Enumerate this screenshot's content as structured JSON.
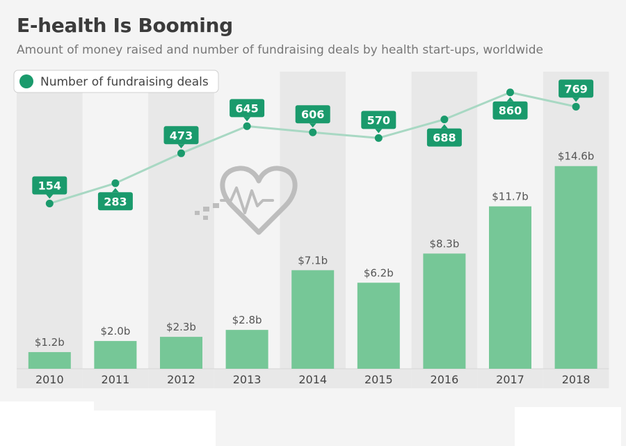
{
  "header": {
    "title": "E-health Is Booming",
    "subtitle": "Amount of money raised and number of fundraising deals by health start-ups, worldwide"
  },
  "colors": {
    "bar": "#76c797",
    "line": "#a8d8c3",
    "marker": "#1a9a6c",
    "label_bg": "#1a9a6c",
    "band": "#e8e8e8",
    "text": "#555555",
    "icon": "#bdbdbd"
  },
  "chart_data": {
    "type": "bar",
    "categories": [
      "2010",
      "2011",
      "2012",
      "2013",
      "2014",
      "2015",
      "2016",
      "2017",
      "2018"
    ],
    "series": [
      {
        "type": "bar",
        "values": [
          1.2,
          2.0,
          2.3,
          2.8,
          7.1,
          6.2,
          8.3,
          11.7,
          14.6
        ],
        "labels": [
          "$1.2b",
          "$2.0b",
          "$2.3b",
          "$2.8b",
          "$7.1b",
          "$6.2b",
          "$8.3b",
          "$11.7b",
          "$14.6b"
        ]
      },
      {
        "type": "line",
        "name": "Number of fundraising deals",
        "values": [
          154,
          283,
          473,
          645,
          606,
          570,
          688,
          860,
          769
        ],
        "labels": [
          "154",
          "283",
          "473",
          "645",
          "606",
          "570",
          "688",
          "860",
          "769"
        ],
        "label_position": [
          "above",
          "below",
          "above",
          "above",
          "above",
          "above",
          "below",
          "below",
          "above"
        ]
      }
    ],
    "legend": {
      "position": "top-left",
      "label": "Number of fundraising deals"
    },
    "grid": false,
    "decoration": "heart-pulse-icon"
  }
}
